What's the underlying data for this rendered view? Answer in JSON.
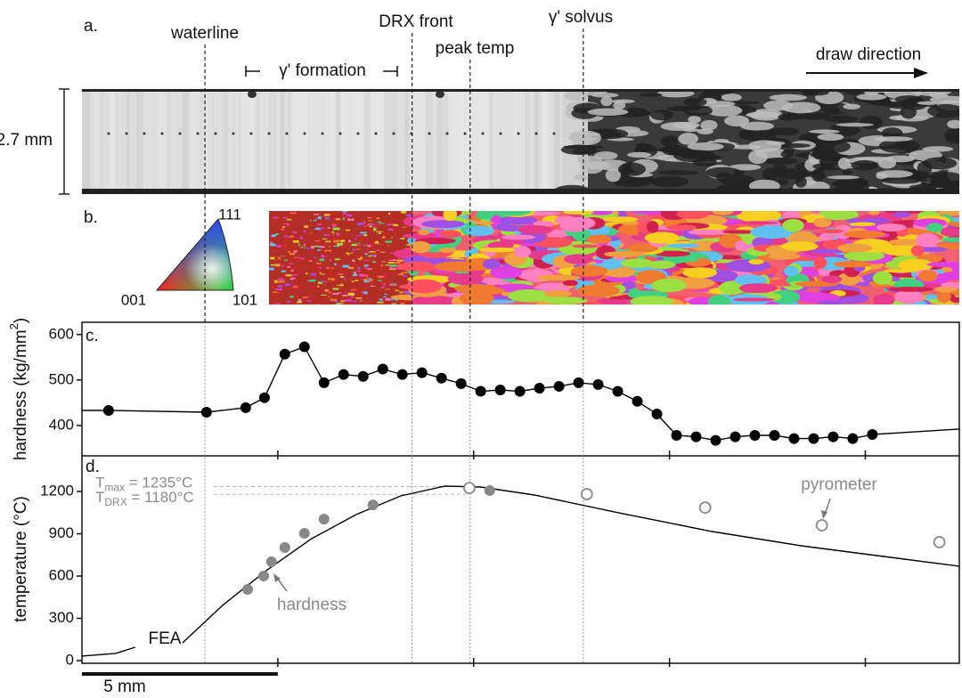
{
  "panel_a": {
    "label": "a.",
    "scale_label": "2.7 mm",
    "direction_label": "draw direction",
    "formation_label": "γ' formation"
  },
  "panel_b": {
    "label": "b.",
    "ipf_labels": [
      "001",
      "101",
      "111"
    ]
  },
  "markers": [
    {
      "label": "waterline",
      "x": 3.14
    },
    {
      "label": "DRX front",
      "x": 8.43
    },
    {
      "label": "peak temp",
      "x": 9.91
    },
    {
      "label": "γ' solvus",
      "x": 12.8
    }
  ],
  "scale_bar": {
    "label": "5 mm",
    "length": 5
  },
  "chart_data": [
    {
      "type": "scatter",
      "panel_label": "c.",
      "ylabel": [
        "hardness (kg/mm",
        "2",
        ")"
      ],
      "xlim": [
        0,
        22.4
      ],
      "xticks": [
        5,
        10,
        15,
        20
      ],
      "ylim": [
        333,
        627
      ],
      "yticks": [
        400,
        500,
        600
      ],
      "series": [
        {
          "color": "#000000",
          "marker": "filled",
          "line": true,
          "x": [
            0.68,
            3.18,
            4.18,
            4.66,
            5.18,
            5.68,
            6.18,
            6.68,
            7.18,
            7.68,
            8.18,
            8.68,
            9.18,
            9.68,
            10.18,
            10.68,
            11.18,
            11.68,
            12.18,
            12.68,
            13.18,
            13.68,
            14.18,
            14.68,
            15.18,
            15.68,
            16.18,
            16.68,
            17.18,
            17.68,
            18.18,
            18.68,
            19.18,
            19.68,
            20.18
          ],
          "values": [
            433,
            429,
            439,
            461,
            557,
            573,
            494,
            512,
            508,
            524,
            512,
            516,
            504,
            492,
            475,
            478,
            475,
            482,
            486,
            494,
            490,
            475,
            453,
            425,
            378,
            375,
            367,
            375,
            378,
            378,
            371,
            371,
            375,
            371,
            380
          ]
        },
        {
          "color": "#000000",
          "marker": "none",
          "line": true,
          "x": [
            0,
            0.68
          ],
          "values": [
            433,
            433
          ]
        },
        {
          "color": "#000000",
          "marker": "none",
          "line": true,
          "x": [
            20.18,
            22.4
          ],
          "values": [
            380,
            392
          ]
        }
      ]
    },
    {
      "type": "scatter",
      "panel_label": "d.",
      "ylabel": [
        "temperature (°C)"
      ],
      "xlim": [
        0,
        22.4
      ],
      "xticks": [
        5,
        10,
        15,
        20
      ],
      "ylim": [
        -19,
        1453
      ],
      "yticks": [
        0,
        300,
        600,
        900,
        1200
      ],
      "series": [
        {
          "name": "FEA",
          "color": "#000000",
          "marker": "none",
          "line": true,
          "x": [
            0,
            0.86,
            1.36,
            2.0,
            2.57,
            3.59,
            4.73,
            5.86,
            7.0,
            8.14,
            9.27,
            10.18,
            11.55,
            13.82,
            16.09,
            18.36,
            20.64,
            22.39
          ],
          "values": [
            32,
            51,
            95,
            null,
            126,
            392,
            644,
            865,
            1036,
            1169,
            1238,
            1232,
            1175,
            1042,
            916,
            815,
            733,
            670
          ]
        },
        {
          "name": "hardness",
          "color": "#888888",
          "marker": "filled",
          "line": false,
          "x": [
            4.23,
            4.64,
            4.84,
            5.18,
            5.68,
            6.18,
            7.43,
            10.41
          ],
          "values": [
            505,
            600,
            701,
            802,
            903,
            1004,
            1105,
            1207
          ]
        },
        {
          "name": "pyrometer",
          "color": "#888888",
          "marker": "open",
          "line": false,
          "x": [
            9.89,
            12.89,
            15.91,
            18.89,
            21.89
          ],
          "values": [
            1225,
            1181,
            1086,
            960,
            840
          ]
        }
      ],
      "thresholds": [
        {
          "symbol": "T",
          "sub": "max",
          "text": " = 1235°C",
          "value": 1235
        },
        {
          "symbol": "T",
          "sub": "DRX",
          "text": " = 1180°C",
          "value": 1180
        }
      ]
    }
  ]
}
